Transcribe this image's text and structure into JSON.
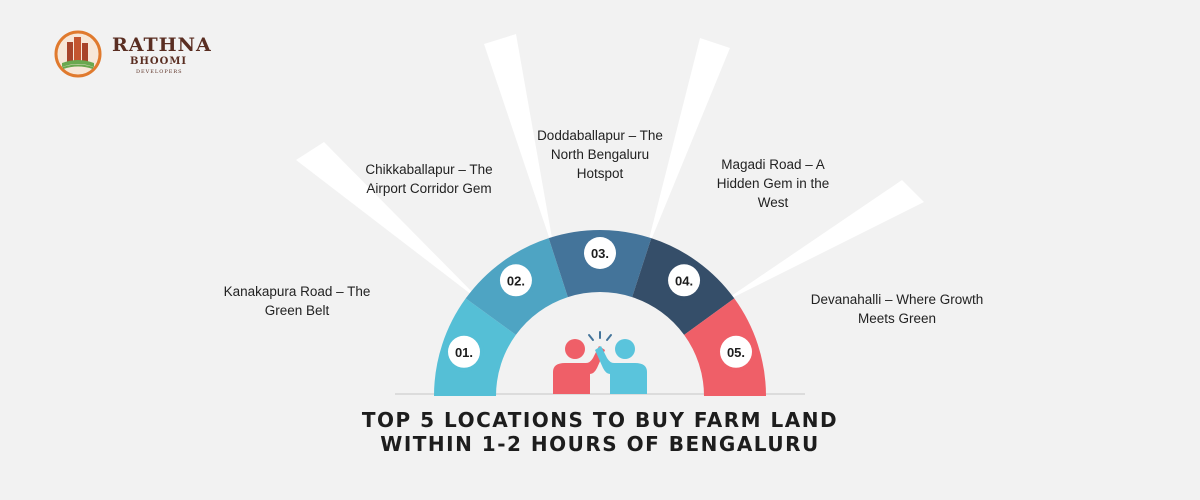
{
  "brand": {
    "name": "RATHNA",
    "sub": "BHOOMI",
    "tagline": "DEVELOPERS"
  },
  "title": "TOP 5 LOCATIONS TO BUY FARM LAND WITHIN 1-2 HOURS OF BENGALURU",
  "segments": [
    {
      "number": "01.",
      "label": "Kanakapura Road – The Green Belt",
      "color": "#55bfd6"
    },
    {
      "number": "02.",
      "label": "Chikkaballapur – The Airport Corridor Gem",
      "color": "#4ea4c3"
    },
    {
      "number": "03.",
      "label": "Doddaballapur – The North Bengaluru Hotspot",
      "color": "#44749a"
    },
    {
      "number": "04.",
      "label": "Magadi Road – A Hidden Gem in the West",
      "color": "#354e69"
    },
    {
      "number": "05.",
      "label": "Devanahalli – Where Growth Meets Green",
      "color": "#ef5f68"
    }
  ],
  "icon": "high-five-icon"
}
